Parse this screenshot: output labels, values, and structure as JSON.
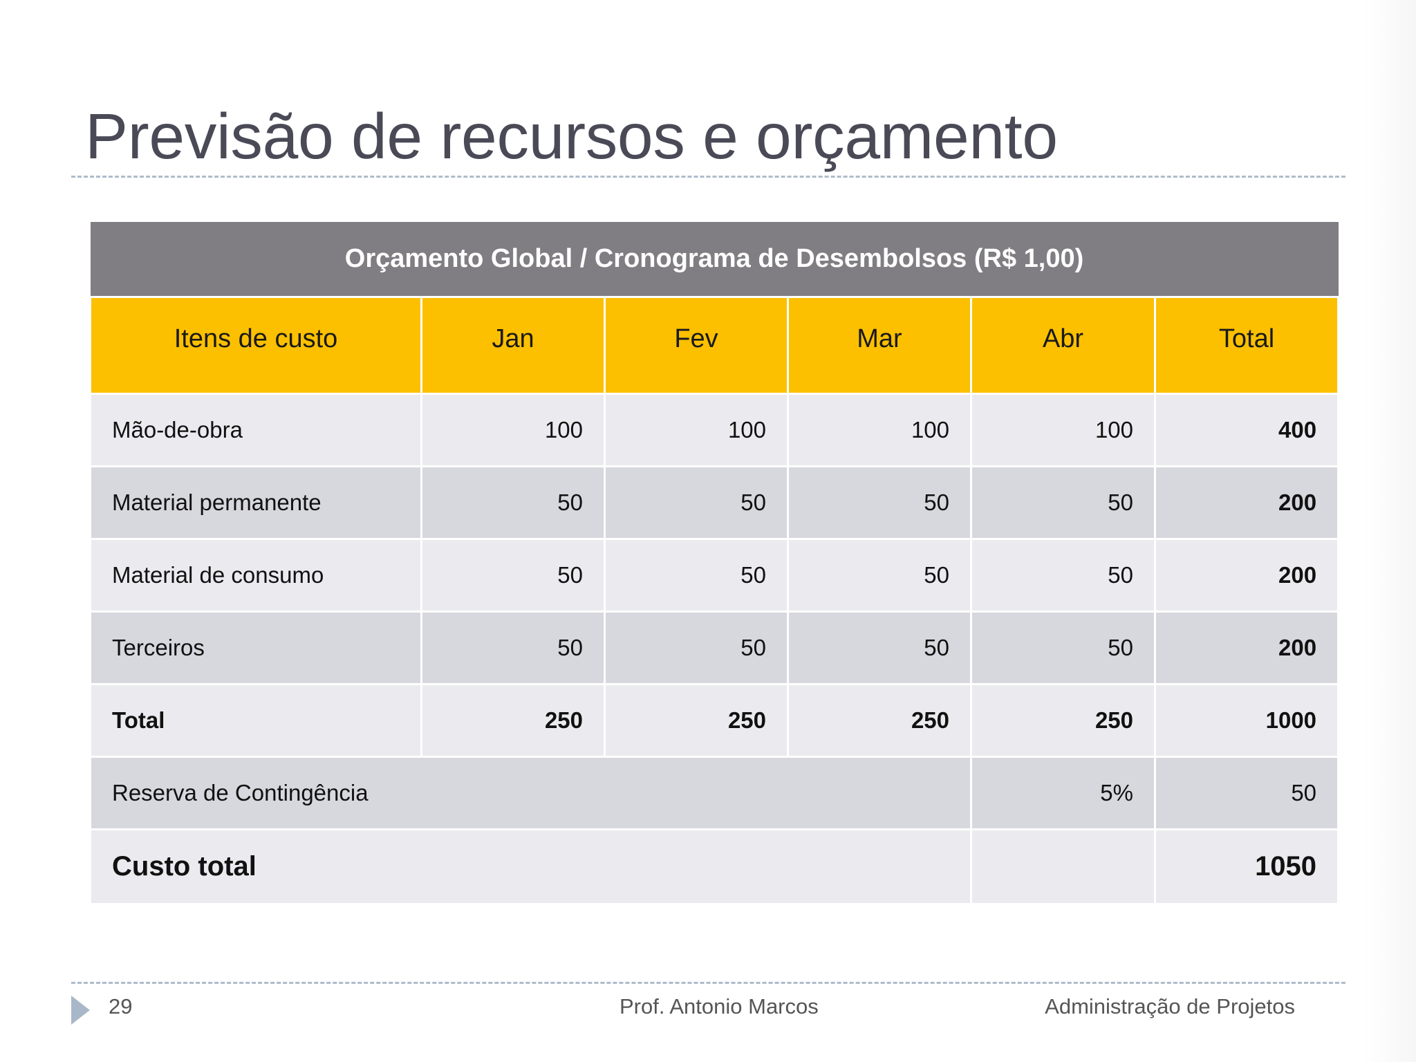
{
  "slide": {
    "title": "Previsão de recursos e orçamento",
    "footer": {
      "page_number": "29",
      "author": "Prof. Antonio Marcos",
      "course": "Administração de Projetos"
    }
  },
  "table": {
    "caption": "Orçamento Global / Cronograma de Desembolsos (R$ 1,00)",
    "headers": [
      "Itens de custo",
      "Jan",
      "Fev",
      "Mar",
      "Abr",
      "Total"
    ],
    "rows": [
      {
        "item": "Mão-de-obra",
        "jan": "100",
        "fev": "100",
        "mar": "100",
        "abr": "100",
        "total": "400"
      },
      {
        "item": "Material permanente",
        "jan": "50",
        "fev": "50",
        "mar": "50",
        "abr": "50",
        "total": "200"
      },
      {
        "item": "Material de consumo",
        "jan": "50",
        "fev": "50",
        "mar": "50",
        "abr": "50",
        "total": "200"
      },
      {
        "item": "Terceiros",
        "jan": "50",
        "fev": "50",
        "mar": "50",
        "abr": "50",
        "total": "200"
      }
    ],
    "totals": {
      "label": "Total",
      "jan": "250",
      "fev": "250",
      "mar": "250",
      "abr": "250",
      "total": "1000"
    },
    "contingency": {
      "label": "Reserva de Contingência",
      "percent": "5%",
      "value": "50"
    },
    "grand_total": {
      "label": "Custo total",
      "value": "1050"
    }
  },
  "colors": {
    "caption_background": "#807e82",
    "header_background": "#fcc000",
    "row_light": "#ebebef",
    "row_dark": "#d7d7de",
    "title_text": "#4a4a57"
  },
  "icons": {
    "footer_bullet": "triangle-right-icon"
  }
}
